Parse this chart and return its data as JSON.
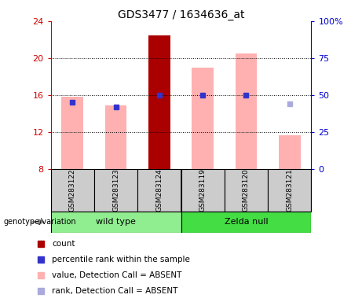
{
  "title": "GDS3477 / 1634636_at",
  "samples": [
    "GSM283122",
    "GSM283123",
    "GSM283124",
    "GSM283119",
    "GSM283120",
    "GSM283121"
  ],
  "group_colors": {
    "wild type": "#90ee90",
    "Zelda null": "#44dd44"
  },
  "ylim_left": [
    8,
    24
  ],
  "ylim_right": [
    0,
    100
  ],
  "yticks_left": [
    8,
    12,
    16,
    20,
    24
  ],
  "yticks_right": [
    0,
    25,
    50,
    75,
    100
  ],
  "pink_bar_top": [
    15.8,
    14.9,
    22.5,
    19.0,
    20.5,
    11.7
  ],
  "pink_bar_bottom": 8.0,
  "blue_rank_pct": [
    45.0,
    42.0,
    50.0,
    50.0,
    50.0,
    null
  ],
  "blue_float_pct": [
    null,
    null,
    null,
    null,
    null,
    44.0
  ],
  "dark_red_sample": 2,
  "bar_width": 0.5,
  "pink_color": "#ffb0b0",
  "dark_red_color": "#aa0000",
  "blue_color": "#3333cc",
  "blue_float_color": "#aaaadd",
  "left_axis_color": "#cc0000",
  "right_axis_color": "#0000cc",
  "bg_color": "#ffffff",
  "label_area_color": "#cccccc",
  "legend_items": [
    {
      "label": "count",
      "color": "#aa0000"
    },
    {
      "label": "percentile rank within the sample",
      "color": "#3333cc"
    },
    {
      "label": "value, Detection Call = ABSENT",
      "color": "#ffb0b0"
    },
    {
      "label": "rank, Detection Call = ABSENT",
      "color": "#aaaadd"
    }
  ]
}
